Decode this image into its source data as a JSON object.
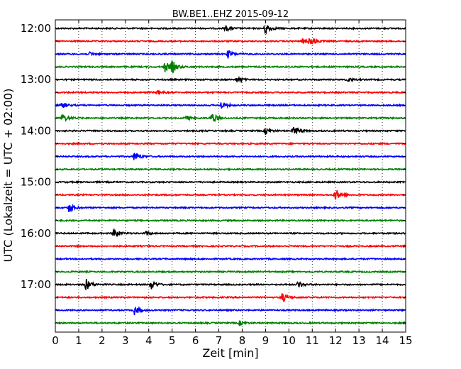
{
  "chart_data": {
    "type": "line",
    "title": "BW.BE1..EHZ 2015-09-12",
    "xlabel": "Zeit  [min]",
    "ylabel": "UTC (Lokalzeit = UTC + 02:00)",
    "xlim": [
      0,
      15
    ],
    "x_ticks": [
      "0",
      "1",
      "2",
      "3",
      "4",
      "5",
      "6",
      "7",
      "8",
      "9",
      "10",
      "11",
      "12",
      "13",
      "14",
      "15"
    ],
    "y_tick_labels": [
      "12:00",
      "13:00",
      "14:00",
      "15:00",
      "16:00",
      "17:00"
    ],
    "vertical_grid": "dotted",
    "line_colors": [
      "#000000",
      "#ff0000",
      "#0000ff",
      "#008000"
    ],
    "traces": [
      {
        "start": "12:00",
        "events": [
          [
            9.0,
            1.0
          ],
          [
            7.3,
            0.5
          ]
        ]
      },
      {
        "start": "12:15",
        "events": [
          [
            10.9,
            1.0
          ],
          [
            10.6,
            0.4
          ]
        ]
      },
      {
        "start": "12:30",
        "events": [
          [
            7.4,
            0.7
          ],
          [
            1.5,
            0.3
          ]
        ]
      },
      {
        "start": "12:45",
        "events": [
          [
            4.7,
            0.9
          ],
          [
            5.0,
            1.0
          ]
        ]
      },
      {
        "start": "13:00",
        "events": [
          [
            7.8,
            0.5
          ],
          [
            12.5,
            0.4
          ]
        ]
      },
      {
        "start": "13:15",
        "events": [
          [
            4.4,
            0.4
          ]
        ]
      },
      {
        "start": "13:30",
        "events": [
          [
            0.3,
            0.6
          ],
          [
            7.1,
            0.6
          ]
        ]
      },
      {
        "start": "13:45",
        "events": [
          [
            0.3,
            0.8
          ],
          [
            6.7,
            1.0
          ],
          [
            5.6,
            0.4
          ]
        ]
      },
      {
        "start": "14:00",
        "events": [
          [
            10.2,
            1.0
          ],
          [
            9.0,
            0.6
          ]
        ]
      },
      {
        "start": "14:15",
        "events": []
      },
      {
        "start": "14:30",
        "events": [
          [
            3.4,
            0.9
          ]
        ]
      },
      {
        "start": "14:45",
        "events": []
      },
      {
        "start": "15:00",
        "events": []
      },
      {
        "start": "15:15",
        "events": [
          [
            12.0,
            1.0
          ]
        ]
      },
      {
        "start": "15:30",
        "events": [
          [
            0.6,
            0.9
          ]
        ]
      },
      {
        "start": "15:45",
        "events": []
      },
      {
        "start": "16:00",
        "events": [
          [
            2.5,
            0.9
          ],
          [
            3.9,
            0.3
          ]
        ]
      },
      {
        "start": "16:15",
        "events": []
      },
      {
        "start": "16:30",
        "events": []
      },
      {
        "start": "16:45",
        "events": []
      },
      {
        "start": "17:00",
        "events": [
          [
            1.3,
            1.1
          ],
          [
            4.1,
            0.9
          ],
          [
            10.4,
            0.6
          ]
        ]
      },
      {
        "start": "17:15",
        "events": [
          [
            9.7,
            0.9
          ]
        ]
      },
      {
        "start": "17:30",
        "events": [
          [
            3.4,
            0.8
          ]
        ]
      },
      {
        "start": "17:45",
        "events": [
          [
            7.9,
            0.4
          ]
        ]
      }
    ]
  }
}
